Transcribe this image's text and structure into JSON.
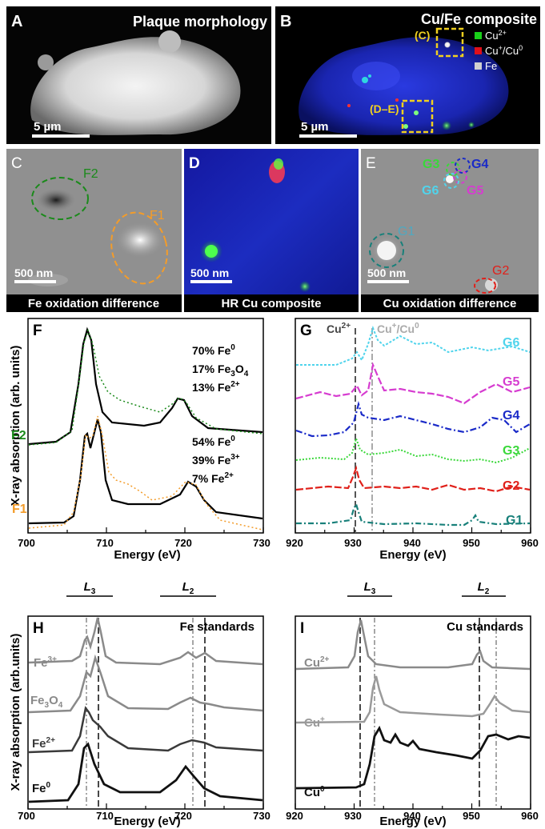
{
  "panels": {
    "A": {
      "letter": "A",
      "title": "Plaque morphology",
      "scale": "5 µm"
    },
    "B": {
      "letter": "B",
      "title": "Cu/Fe composite",
      "scale": "5 µm",
      "box_c": "(C)",
      "box_de": "(D–E)",
      "legend": [
        {
          "label": "Cu",
          "sup": "2+",
          "color": "#19d019"
        },
        {
          "label": "Cu",
          "sup": "+",
          "tail": "/Cu",
          "sup2": "0",
          "color": "#e0101a"
        },
        {
          "label": "Fe",
          "color": "#d0d0d0"
        }
      ]
    },
    "C": {
      "letter": "C",
      "caption": "Fe oxidation difference",
      "scale": "500 nm",
      "f1": "F1",
      "f2": "F2"
    },
    "D": {
      "letter": "D",
      "caption": "HR Cu composite",
      "scale": "500 nm"
    },
    "E": {
      "letter": "E",
      "caption": "Cu oxidation difference",
      "scale": "500 nm",
      "g": [
        "G1",
        "G2",
        "G3",
        "G4",
        "G5",
        "G6"
      ]
    }
  },
  "F": {
    "letter": "F",
    "ylabel": "X-ray absorption (arb. units)",
    "xlabel": "Energy (eV)",
    "xticks": [
      "700",
      "710",
      "720",
      "730"
    ],
    "f2": {
      "label": "F2",
      "lines": [
        {
          "a": "70% Fe",
          "s": "0",
          "sub": ""
        },
        {
          "a": "17% Fe",
          "s": "",
          "sub": "3",
          "b": "O",
          "sub2": "4"
        },
        {
          "a": "13% Fe",
          "s": "2+",
          "sub": ""
        }
      ]
    },
    "f1": {
      "label": "F1",
      "lines": [
        {
          "a": "54% Fe",
          "s": "0"
        },
        {
          "a": "39% Fe",
          "s": "3+"
        },
        {
          "a": "7% Fe",
          "s": "2+"
        }
      ]
    }
  },
  "G": {
    "letter": "G",
    "xlabel": "Energy (eV)",
    "xticks": [
      "920",
      "930",
      "940",
      "950",
      "960"
    ],
    "line1": {
      "a": "Cu",
      "s": "2+"
    },
    "line2": {
      "a": "Cu",
      "s": "+",
      "b": "/Cu",
      "s2": "0"
    },
    "series": [
      "G6",
      "G5",
      "G4",
      "G3",
      "G2",
      "G1"
    ]
  },
  "H": {
    "letter": "H",
    "title": "Fe standards",
    "ylabel": "X-ray absorption (arb.units)",
    "xlabel": "Energy (eV)",
    "xticks": [
      "700",
      "710",
      "720",
      "730"
    ],
    "l3": "L",
    "l3sub": "3",
    "l2": "L",
    "l2sub": "2",
    "series": [
      {
        "a": "Fe",
        "s": "3+",
        "sub": "",
        "color": "#8a8a8a"
      },
      {
        "a": "Fe",
        "s": "",
        "sub": "3",
        "b": "O",
        "sub2": "4",
        "color": "#8a8a8a"
      },
      {
        "a": "Fe",
        "s": "2+",
        "sub": "",
        "color": "#3a3a3a"
      },
      {
        "a": "Fe",
        "s": "0",
        "sub": "",
        "color": "#111111"
      }
    ]
  },
  "I": {
    "letter": "I",
    "title": "Cu standards",
    "xlabel": "Energy (eV)",
    "xticks": [
      "920",
      "930",
      "940",
      "950",
      "960"
    ],
    "l3": "L",
    "l3sub": "3",
    "l2": "L",
    "l2sub": "2",
    "series": [
      {
        "a": "Cu",
        "s": "2+",
        "color": "#8a8a8a"
      },
      {
        "a": "Cu",
        "s": "+",
        "color": "#9a9a9a"
      },
      {
        "a": "Cu",
        "s": "0",
        "color": "#111111"
      }
    ]
  },
  "colors": {
    "fe_green": "#1a8a1a",
    "fe_orange": "#f39c2a",
    "g6": "#50d4ec",
    "g5": "#d63cd0",
    "g4": "#1a2ac8",
    "g3": "#3ad83a",
    "g2": "#e0201a",
    "g1": "#18807a"
  }
}
